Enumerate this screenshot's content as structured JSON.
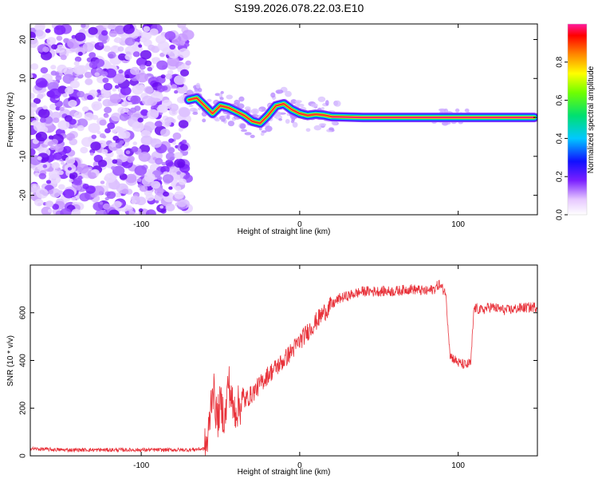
{
  "title": "S199.2026.078.22.03.E10",
  "chart_data": [
    {
      "type": "heatmap",
      "name": "spectrogram",
      "xlabel": "Height of straight line (km)",
      "ylabel": "Frequency (Hz)",
      "xlim": [
        -170,
        150
      ],
      "ylim": [
        -25,
        24
      ],
      "xticks": [
        -100,
        0,
        100
      ],
      "xtick_labels": [
        "-100",
        "0",
        "100"
      ],
      "yticks": [
        20,
        10,
        0,
        -10,
        -20
      ],
      "ytick_labels": [
        "20",
        "10",
        "0",
        "-10",
        "-20"
      ],
      "ridge": {
        "x": [
          -70,
          -65,
          -60,
          -55,
          -50,
          -45,
          -40,
          -35,
          -30,
          -25,
          -20,
          -15,
          -10,
          -5,
          0,
          5,
          10,
          15,
          20,
          40,
          60,
          80,
          100,
          120,
          148
        ],
        "y": [
          4.5,
          5,
          3,
          1,
          3,
          2.5,
          1.5,
          0.5,
          -1,
          -1.5,
          0.5,
          3,
          3.5,
          2,
          1,
          0.5,
          0.8,
          0.6,
          0.2,
          0,
          0,
          0,
          0,
          0,
          0
        ]
      },
      "noise_region": {
        "x_from": -170,
        "x_to": -70
      },
      "colorbar": {
        "label": "Normalized spectral amplitude",
        "ticks": [
          0.0,
          0.2,
          0.4,
          0.6,
          0.8
        ],
        "tick_labels": [
          "0.0",
          "0.2",
          "0.4",
          "0.6",
          "0.8"
        ],
        "range": [
          0,
          1
        ]
      }
    },
    {
      "type": "line",
      "name": "snr",
      "xlabel": "Height of straight line (km)",
      "ylabel": "SNR (10 * v/v)",
      "xlim": [
        -170,
        150
      ],
      "ylim": [
        0,
        800
      ],
      "xticks": [
        -100,
        0,
        100
      ],
      "xtick_labels": [
        "-100",
        "0",
        "100"
      ],
      "yticks": [
        0,
        200,
        400,
        600
      ],
      "ytick_labels": [
        "0",
        "200",
        "400",
        "600"
      ],
      "color": "#e8323a",
      "x": [
        -170,
        -150,
        -120,
        -90,
        -70,
        -60,
        -58,
        -55,
        -52,
        -50,
        -47,
        -45,
        -42,
        -40,
        -35,
        -30,
        -25,
        -20,
        -15,
        -10,
        -5,
        0,
        5,
        10,
        15,
        20,
        25,
        30,
        40,
        50,
        60,
        70,
        80,
        85,
        88,
        90,
        92,
        95,
        100,
        105,
        108,
        110,
        115,
        120,
        130,
        140,
        150
      ],
      "y": [
        30,
        25,
        25,
        25,
        25,
        30,
        60,
        300,
        150,
        220,
        150,
        320,
        190,
        200,
        230,
        260,
        300,
        340,
        370,
        400,
        440,
        480,
        520,
        560,
        600,
        630,
        660,
        670,
        690,
        690,
        690,
        700,
        690,
        700,
        720,
        700,
        690,
        420,
        390,
        380,
        390,
        620,
        610,
        625,
        610,
        620,
        625
      ]
    }
  ]
}
